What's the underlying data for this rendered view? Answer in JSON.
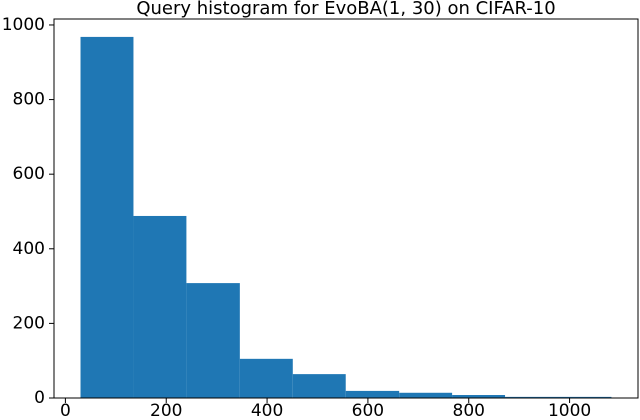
{
  "chart_data": {
    "type": "histogram",
    "title": "Query histogram for EvoBA(1, 30) on CIFAR-10",
    "bins": [
      30,
      135,
      240,
      346,
      451,
      556,
      662,
      767,
      872,
      978,
      1083
    ],
    "values": [
      968,
      488,
      308,
      105,
      64,
      19,
      14,
      8,
      3,
      3
    ],
    "color": "#1f77b4",
    "xlim": [
      -22.6,
      1135.7
    ],
    "xticks": [
      0,
      200,
      400,
      600,
      800,
      1000
    ],
    "ylim": [
      0,
      1016
    ],
    "yticks": [
      0,
      200,
      400,
      600,
      800,
      1000
    ],
    "grid": false
  }
}
